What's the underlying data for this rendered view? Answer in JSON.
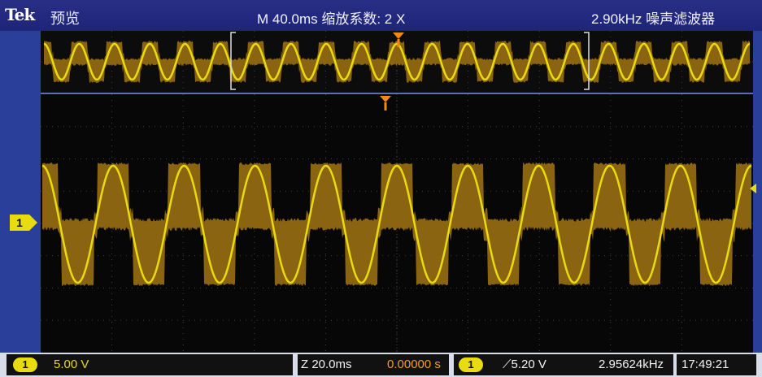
{
  "header": {
    "brand": "Tek",
    "mode": "预览",
    "timebase": "M 40.0ms 缩放系数: 2 X",
    "filter": "2.90kHz  噪声滤波器"
  },
  "channel": {
    "marker": "1"
  },
  "status": {
    "ch1_chip": "1",
    "ch1_scale": "5.00 V",
    "zoom_timebase": "Z 20.0ms",
    "zoom_position": "0.00000 s",
    "trigger_chip": "1",
    "trigger_level": "⟋5.20 V",
    "trigger_freq": "2.95624kHz",
    "clock": "17:49:21"
  },
  "colors": {
    "trace": "#e8dc10",
    "noise": "#8a6410",
    "trigger": "#f08a10",
    "grid": "#444444"
  },
  "waveform": {
    "cycles_main": 10,
    "cycles_overview": 20
  }
}
